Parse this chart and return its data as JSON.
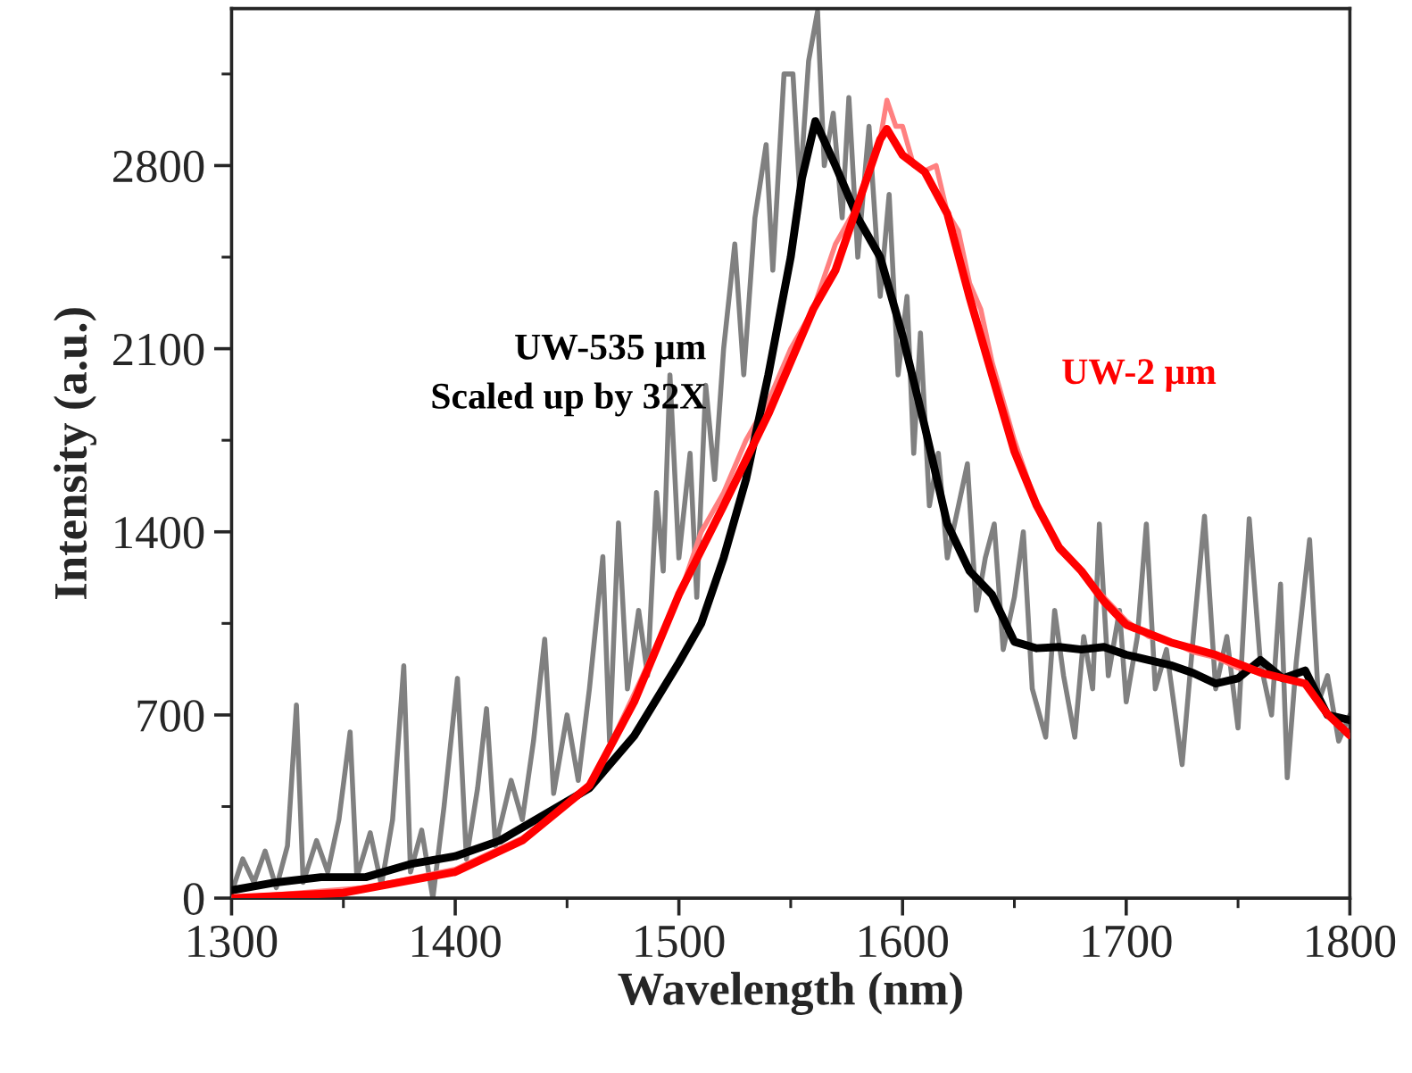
{
  "chart_data": {
    "type": "line",
    "xlabel": "Wavelength (nm)",
    "ylabel": "Intensity (a.u.)",
    "xlim": [
      1300,
      1800
    ],
    "xticks": [
      1300,
      1400,
      1500,
      1600,
      1700,
      1800
    ],
    "ylim": [
      0,
      3400
    ],
    "yticks": [
      0,
      700,
      1400,
      2100,
      2800
    ],
    "grid": false,
    "legend": false,
    "marker": "none",
    "line_style": "solid",
    "series": [
      {
        "color": "#808080",
        "x": [
          1300,
          1305,
          1310,
          1315,
          1320,
          1325,
          1329,
          1332,
          1338,
          1343,
          1348,
          1353,
          1356,
          1362,
          1367,
          1372,
          1377,
          1380,
          1385,
          1390,
          1395,
          1401,
          1405,
          1410,
          1414,
          1418,
          1425,
          1430,
          1435,
          1440,
          1444,
          1450,
          1455,
          1460,
          1466,
          1469,
          1473,
          1477,
          1482,
          1486,
          1490,
          1493,
          1496,
          1500,
          1505,
          1508,
          1512,
          1516,
          1520,
          1525,
          1529,
          1534,
          1539,
          1542,
          1547,
          1551,
          1554,
          1558,
          1562,
          1565,
          1569,
          1573,
          1576,
          1580,
          1585,
          1590,
          1594,
          1598,
          1602,
          1605,
          1608,
          1612,
          1616,
          1620,
          1625,
          1629,
          1633,
          1637,
          1641,
          1645,
          1650,
          1654,
          1658,
          1664,
          1668,
          1672,
          1677,
          1681,
          1685,
          1688,
          1692,
          1697,
          1700,
          1705,
          1709,
          1713,
          1718,
          1722,
          1725,
          1730,
          1735,
          1740,
          1745,
          1750,
          1755,
          1760,
          1765,
          1769,
          1772,
          1776,
          1782,
          1786,
          1790,
          1795,
          1800
        ],
        "values": [
          20,
          150,
          60,
          180,
          40,
          200,
          738,
          60,
          220,
          100,
          300,
          635,
          80,
          250,
          50,
          300,
          888,
          100,
          260,
          0,
          350,
          840,
          150,
          420,
          724,
          200,
          450,
          300,
          600,
          990,
          400,
          700,
          450,
          800,
          1305,
          600,
          1434,
          800,
          1100,
          850,
          1550,
          1250,
          2000,
          1300,
          1700,
          1150,
          1960,
          1600,
          2100,
          2500,
          2000,
          2600,
          2880,
          2400,
          3150,
          3150,
          2700,
          3200,
          3390,
          2800,
          3000,
          2600,
          3060,
          2450,
          2950,
          2300,
          2690,
          2000,
          2300,
          1700,
          2160,
          1500,
          1700,
          1300,
          1500,
          1660,
          1100,
          1300,
          1430,
          950,
          1150,
          1400,
          800,
          615,
          1100,
          850,
          615,
          1000,
          800,
          1430,
          850,
          1100,
          750,
          1000,
          1430,
          800,
          950,
          700,
          510,
          1000,
          1460,
          800,
          1000,
          650,
          1450,
          900,
          700,
          1200,
          460,
          900,
          1370,
          750,
          850,
          600,
          700
        ]
      },
      {
        "color": "#ff8080",
        "x": [
          1300,
          1330,
          1360,
          1400,
          1430,
          1460,
          1480,
          1500,
          1510,
          1520,
          1530,
          1540,
          1550,
          1560,
          1570,
          1580,
          1585,
          1590,
          1593,
          1597,
          1600,
          1605,
          1610,
          1615,
          1620,
          1625,
          1630,
          1635,
          1640,
          1650,
          1660,
          1670,
          1680,
          1690,
          1700,
          1710,
          1720,
          1730,
          1740,
          1750,
          1760,
          1770,
          1780,
          1790,
          1800
        ],
        "values": [
          0,
          20,
          40,
          110,
          230,
          420,
          780,
          1150,
          1400,
          1550,
          1750,
          1900,
          2100,
          2250,
          2500,
          2650,
          2800,
          2900,
          3050,
          2950,
          2950,
          2800,
          2780,
          2800,
          2620,
          2550,
          2350,
          2250,
          2050,
          1750,
          1500,
          1330,
          1250,
          1150,
          1060,
          1000,
          980,
          940,
          920,
          880,
          860,
          840,
          820,
          700,
          620
        ]
      },
      {
        "color": "#000000",
        "name": "UW-535 μm\nScaled up by 32X",
        "x": [
          1300,
          1320,
          1340,
          1360,
          1380,
          1400,
          1420,
          1440,
          1460,
          1480,
          1500,
          1510,
          1520,
          1530,
          1540,
          1550,
          1555,
          1561,
          1570,
          1580,
          1590,
          1600,
          1610,
          1620,
          1630,
          1640,
          1650,
          1660,
          1670,
          1680,
          1690,
          1700,
          1710,
          1720,
          1730,
          1740,
          1750,
          1760,
          1770,
          1780,
          1790,
          1800
        ],
        "values": [
          30,
          60,
          80,
          80,
          130,
          160,
          220,
          320,
          420,
          620,
          900,
          1050,
          1300,
          1600,
          2000,
          2450,
          2750,
          2970,
          2800,
          2600,
          2450,
          2150,
          1800,
          1430,
          1250,
          1160,
          980,
          955,
          960,
          950,
          960,
          930,
          910,
          890,
          860,
          820,
          840,
          910,
          840,
          870,
          700,
          680
        ]
      },
      {
        "color": "#ff0000",
        "name": "UW-2 μm",
        "x": [
          1300,
          1350,
          1400,
          1430,
          1460,
          1480,
          1500,
          1520,
          1540,
          1560,
          1570,
          1580,
          1590,
          1593,
          1600,
          1610,
          1620,
          1630,
          1640,
          1650,
          1660,
          1670,
          1680,
          1690,
          1700,
          1720,
          1740,
          1760,
          1780,
          1790,
          1800
        ],
        "values": [
          0,
          20,
          100,
          220,
          430,
          750,
          1160,
          1500,
          1850,
          2250,
          2400,
          2650,
          2900,
          2940,
          2840,
          2775,
          2616,
          2295,
          2000,
          1707,
          1500,
          1340,
          1250,
          1135,
          1045,
          977,
          930,
          862,
          820,
          703,
          622
        ]
      }
    ]
  }
}
